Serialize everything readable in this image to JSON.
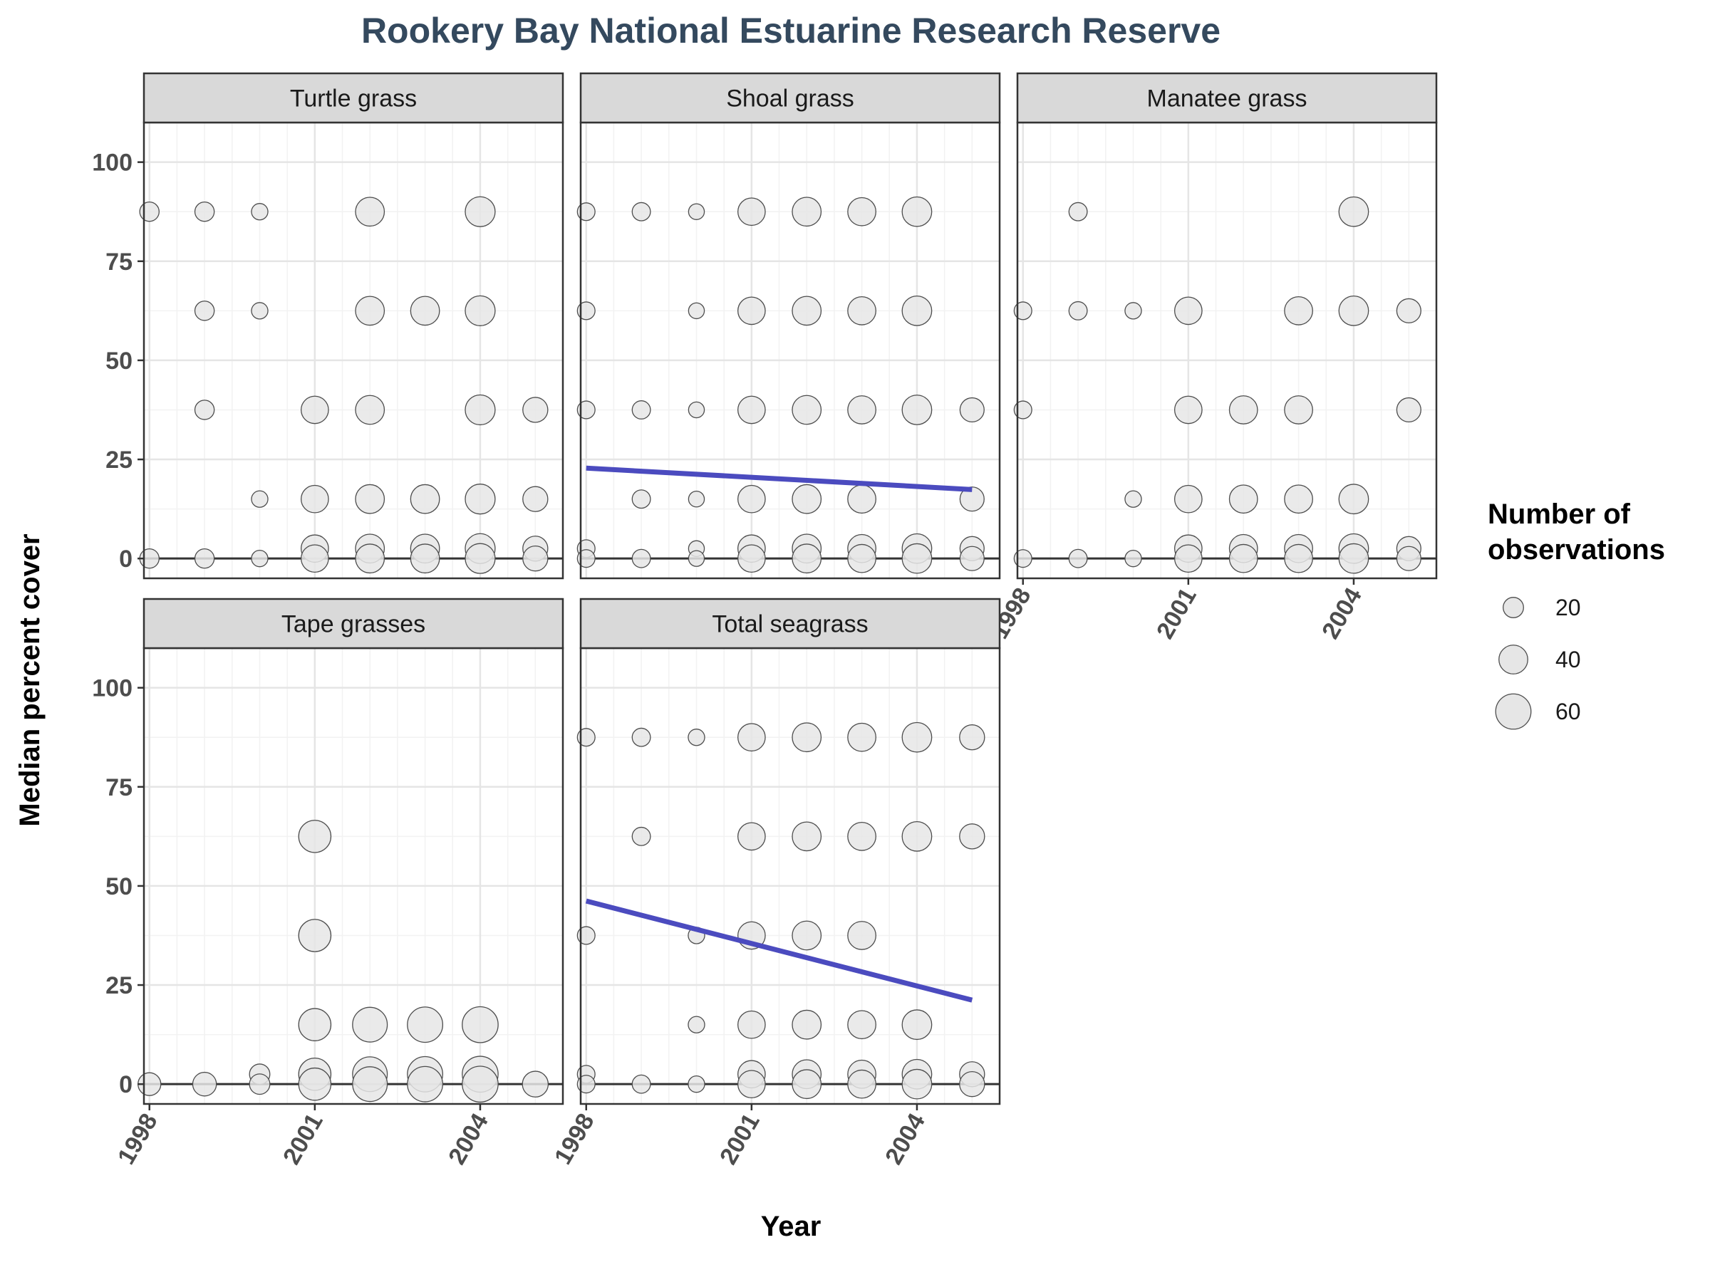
{
  "chart_data": {
    "type": "scatter",
    "title": "Rookery Bay National Estuarine Research Reserve",
    "xlabel": "Year",
    "ylabel": "Median percent cover",
    "xlim": [
      1997.9,
      2005.5
    ],
    "ylim": [
      -5,
      110
    ],
    "x_ticks": [
      1998,
      2001,
      2004
    ],
    "y_ticks": [
      0,
      25,
      50,
      75,
      100
    ],
    "grid": true,
    "point_fill": "#e6e6e6",
    "point_stroke": "#4d4d4d",
    "trend_color": "#4b4bbf",
    "legend": {
      "title": "Number of observations",
      "title_lines": [
        "Number of",
        "observations"
      ],
      "placement": "right",
      "entries": [
        {
          "label": "20",
          "n": 20
        },
        {
          "label": "40",
          "n": 40
        },
        {
          "label": "60",
          "n": 60
        }
      ]
    },
    "panels": [
      {
        "name": "Turtle grass",
        "points": [
          [
            1998,
            87.5,
            18
          ],
          [
            1998,
            0,
            18
          ],
          [
            1999,
            87.5,
            18
          ],
          [
            1999,
            62.5,
            18
          ],
          [
            1999,
            37.5,
            18
          ],
          [
            1999,
            0,
            18
          ],
          [
            2000,
            87.5,
            13
          ],
          [
            2000,
            62.5,
            13
          ],
          [
            2000,
            15,
            13
          ],
          [
            2000,
            0,
            13
          ],
          [
            2001,
            37.5,
            36
          ],
          [
            2001,
            15,
            36
          ],
          [
            2001,
            2.5,
            36
          ],
          [
            2001,
            0,
            36
          ],
          [
            2002,
            87.5,
            40
          ],
          [
            2002,
            62.5,
            40
          ],
          [
            2002,
            37.5,
            40
          ],
          [
            2002,
            15,
            40
          ],
          [
            2002,
            2.5,
            40
          ],
          [
            2002,
            0,
            40
          ],
          [
            2003,
            62.5,
            40
          ],
          [
            2003,
            15,
            40
          ],
          [
            2003,
            2.5,
            40
          ],
          [
            2003,
            0,
            40
          ],
          [
            2004,
            87.5,
            43
          ],
          [
            2004,
            62.5,
            43
          ],
          [
            2004,
            37.5,
            43
          ],
          [
            2004,
            15,
            43
          ],
          [
            2004,
            2.5,
            43
          ],
          [
            2004,
            0,
            43
          ],
          [
            2005,
            37.5,
            30
          ],
          [
            2005,
            15,
            30
          ],
          [
            2005,
            2.5,
            30
          ],
          [
            2005,
            0,
            30
          ]
        ]
      },
      {
        "name": "Shoal grass",
        "trend": {
          "x": [
            1998,
            2005
          ],
          "y": [
            22.8,
            17.4
          ]
        },
        "points": [
          [
            1998,
            87.5,
            15
          ],
          [
            1998,
            62.5,
            15
          ],
          [
            1998,
            37.5,
            15
          ],
          [
            1998,
            2.5,
            15
          ],
          [
            1998,
            0,
            15
          ],
          [
            1999,
            87.5,
            16
          ],
          [
            1999,
            37.5,
            16
          ],
          [
            1999,
            15,
            16
          ],
          [
            1999,
            0,
            16
          ],
          [
            2000,
            87.5,
            12
          ],
          [
            2000,
            62.5,
            12
          ],
          [
            2000,
            37.5,
            12
          ],
          [
            2000,
            15,
            12
          ],
          [
            2000,
            2.5,
            12
          ],
          [
            2000,
            0,
            12
          ],
          [
            2001,
            87.5,
            36
          ],
          [
            2001,
            62.5,
            36
          ],
          [
            2001,
            37.5,
            36
          ],
          [
            2001,
            15,
            36
          ],
          [
            2001,
            2.5,
            36
          ],
          [
            2001,
            0,
            36
          ],
          [
            2002,
            87.5,
            40
          ],
          [
            2002,
            62.5,
            40
          ],
          [
            2002,
            37.5,
            40
          ],
          [
            2002,
            15,
            40
          ],
          [
            2002,
            2.5,
            40
          ],
          [
            2002,
            0,
            40
          ],
          [
            2003,
            87.5,
            38
          ],
          [
            2003,
            62.5,
            38
          ],
          [
            2003,
            37.5,
            38
          ],
          [
            2003,
            15,
            38
          ],
          [
            2003,
            2.5,
            38
          ],
          [
            2003,
            0,
            38
          ],
          [
            2004,
            87.5,
            42
          ],
          [
            2004,
            62.5,
            42
          ],
          [
            2004,
            37.5,
            42
          ],
          [
            2004,
            2.5,
            42
          ],
          [
            2004,
            0,
            42
          ],
          [
            2005,
            37.5,
            28
          ],
          [
            2005,
            15,
            28
          ],
          [
            2005,
            2.5,
            28
          ],
          [
            2005,
            0,
            28
          ]
        ]
      },
      {
        "name": "Manatee grass",
        "points": [
          [
            1998,
            62.5,
            15
          ],
          [
            1998,
            37.5,
            15
          ],
          [
            1998,
            0,
            15
          ],
          [
            1999,
            87.5,
            16
          ],
          [
            1999,
            62.5,
            16
          ],
          [
            1999,
            0,
            16
          ],
          [
            2000,
            62.5,
            13
          ],
          [
            2000,
            15,
            13
          ],
          [
            2000,
            0,
            13
          ],
          [
            2001,
            62.5,
            36
          ],
          [
            2001,
            37.5,
            36
          ],
          [
            2001,
            15,
            36
          ],
          [
            2001,
            2.5,
            36
          ],
          [
            2001,
            0,
            36
          ],
          [
            2002,
            37.5,
            38
          ],
          [
            2002,
            15,
            38
          ],
          [
            2002,
            2.5,
            38
          ],
          [
            2002,
            0,
            38
          ],
          [
            2003,
            62.5,
            38
          ],
          [
            2003,
            37.5,
            38
          ],
          [
            2003,
            15,
            38
          ],
          [
            2003,
            2.5,
            38
          ],
          [
            2003,
            0,
            38
          ],
          [
            2004,
            87.5,
            42
          ],
          [
            2004,
            62.5,
            42
          ],
          [
            2004,
            15,
            42
          ],
          [
            2004,
            2.5,
            42
          ],
          [
            2004,
            0,
            42
          ],
          [
            2005,
            62.5,
            28
          ],
          [
            2005,
            37.5,
            28
          ],
          [
            2005,
            2.5,
            28
          ],
          [
            2005,
            0,
            28
          ]
        ]
      },
      {
        "name": "Tape grasses",
        "points": [
          [
            1998,
            0,
            25
          ],
          [
            1999,
            0,
            27
          ],
          [
            2000,
            2.5,
            20
          ],
          [
            2000,
            0,
            20
          ],
          [
            2001,
            62.5,
            50
          ],
          [
            2001,
            37.5,
            50
          ],
          [
            2001,
            15,
            50
          ],
          [
            2001,
            2.5,
            50
          ],
          [
            2001,
            0,
            50
          ],
          [
            2002,
            15,
            58
          ],
          [
            2002,
            2.5,
            58
          ],
          [
            2002,
            0,
            58
          ],
          [
            2003,
            15,
            60
          ],
          [
            2003,
            2.5,
            60
          ],
          [
            2003,
            0,
            60
          ],
          [
            2004,
            15,
            62
          ],
          [
            2004,
            2.5,
            62
          ],
          [
            2004,
            0,
            62
          ],
          [
            2005,
            0,
            32
          ]
        ]
      },
      {
        "name": "Total seagrass",
        "trend": {
          "x": [
            1998,
            2005
          ],
          "y": [
            46.2,
            21.2
          ]
        },
        "points": [
          [
            1998,
            87.5,
            15
          ],
          [
            1998,
            37.5,
            15
          ],
          [
            1998,
            2.5,
            15
          ],
          [
            1998,
            0,
            15
          ],
          [
            1999,
            87.5,
            16
          ],
          [
            1999,
            62.5,
            16
          ],
          [
            1999,
            0,
            16
          ],
          [
            2000,
            87.5,
            13
          ],
          [
            2000,
            37.5,
            13
          ],
          [
            2000,
            15,
            13
          ],
          [
            2000,
            0,
            13
          ],
          [
            2001,
            87.5,
            36
          ],
          [
            2001,
            62.5,
            36
          ],
          [
            2001,
            37.5,
            36
          ],
          [
            2001,
            15,
            36
          ],
          [
            2001,
            2.5,
            36
          ],
          [
            2001,
            0,
            36
          ],
          [
            2002,
            87.5,
            40
          ],
          [
            2002,
            62.5,
            40
          ],
          [
            2002,
            37.5,
            40
          ],
          [
            2002,
            15,
            40
          ],
          [
            2002,
            2.5,
            40
          ],
          [
            2002,
            0,
            40
          ],
          [
            2003,
            87.5,
            38
          ],
          [
            2003,
            62.5,
            38
          ],
          [
            2003,
            37.5,
            38
          ],
          [
            2003,
            15,
            38
          ],
          [
            2003,
            2.5,
            38
          ],
          [
            2003,
            0,
            38
          ],
          [
            2004,
            87.5,
            42
          ],
          [
            2004,
            62.5,
            42
          ],
          [
            2004,
            15,
            42
          ],
          [
            2004,
            2.5,
            42
          ],
          [
            2004,
            0,
            42
          ],
          [
            2005,
            87.5,
            30
          ],
          [
            2005,
            62.5,
            30
          ],
          [
            2005,
            2.5,
            30
          ],
          [
            2005,
            0,
            30
          ]
        ]
      }
    ]
  }
}
